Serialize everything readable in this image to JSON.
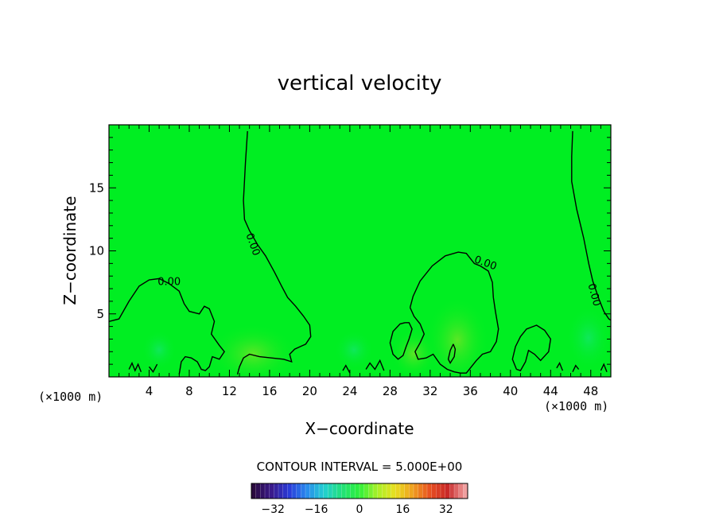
{
  "chart_data": {
    "type": "heatmap",
    "title": "vertical velocity",
    "xlabel": "X−coordinate",
    "ylabel": "Z−coordinate",
    "x_unit": "(×1000 m)",
    "y_unit": "(×1000 m)",
    "xlim": [
      0,
      50
    ],
    "ylim": [
      0,
      20
    ],
    "x_ticks": [
      4,
      8,
      12,
      16,
      20,
      24,
      28,
      32,
      36,
      40,
      44,
      48
    ],
    "y_ticks": [
      5,
      10,
      15
    ],
    "contour_label": "0.00",
    "contour_interval_text": "CONTOUR INTERVAL = 5.000E+00",
    "colorbar": {
      "range": [
        -40,
        40
      ],
      "ticks": [
        -32,
        -16,
        0,
        16,
        32
      ],
      "tick_labels": [
        "−32",
        "−16",
        "0",
        "16",
        "32"
      ],
      "colors": [
        "#2a0a3e",
        "#3a1a8a",
        "#2a3ad8",
        "#2a8aee",
        "#22d0d0",
        "#22e07a",
        "#2ef03a",
        "#a8f028",
        "#e8e020",
        "#f0a020",
        "#e85020",
        "#c82828",
        "#f0a0a0"
      ]
    },
    "field_color": "#00ee22",
    "zero_contours": [
      [
        [
          0,
          4.4
        ],
        [
          1,
          4.6
        ],
        [
          2,
          6.0
        ],
        [
          3,
          7.2
        ],
        [
          4,
          7.7
        ],
        [
          5,
          7.8
        ],
        [
          6,
          7.4
        ],
        [
          7,
          6.8
        ],
        [
          7.5,
          5.8
        ],
        [
          8,
          5.2
        ],
        [
          9,
          5.0
        ],
        [
          9.5,
          5.6
        ],
        [
          10,
          5.4
        ],
        [
          10.5,
          4.4
        ],
        [
          10.2,
          3.4
        ],
        [
          11,
          2.5
        ],
        [
          11.5,
          2.0
        ],
        [
          11,
          1.4
        ],
        [
          10.3,
          1.6
        ],
        [
          10.0,
          0.8
        ],
        [
          9.6,
          0.5
        ],
        [
          9.2,
          0.6
        ],
        [
          8.8,
          1.2
        ],
        [
          8.2,
          1.5
        ],
        [
          7.6,
          1.6
        ],
        [
          7.2,
          1.2
        ],
        [
          7.0,
          0.2
        ]
      ],
      [
        [
          13.8,
          19.5
        ],
        [
          13.6,
          17
        ],
        [
          13.4,
          14
        ],
        [
          13.5,
          12.5
        ],
        [
          14.0,
          11.6
        ],
        [
          14.8,
          10.5
        ],
        [
          15.6,
          9.6
        ],
        [
          16.5,
          8.3
        ],
        [
          17.2,
          7.2
        ],
        [
          17.8,
          6.3
        ],
        [
          18.6,
          5.6
        ],
        [
          19.4,
          4.8
        ],
        [
          20.0,
          4.1
        ],
        [
          20.1,
          3.2
        ],
        [
          19.6,
          2.6
        ],
        [
          18.5,
          2.2
        ],
        [
          18.0,
          1.8
        ],
        [
          18.2,
          1.2
        ],
        [
          17.4,
          1.4
        ],
        [
          16.2,
          1.5
        ],
        [
          15.0,
          1.6
        ],
        [
          14.0,
          1.8
        ],
        [
          13.4,
          1.5
        ],
        [
          13.0,
          0.8
        ],
        [
          12.8,
          0.2
        ]
      ],
      [
        [
          34.3,
          2.6
        ],
        [
          34.5,
          2.2
        ],
        [
          34.4,
          1.6
        ],
        [
          34.0,
          1.1
        ],
        [
          33.8,
          1.4
        ],
        [
          34.0,
          2.1
        ],
        [
          34.3,
          2.6
        ]
      ],
      [
        [
          30,
          5.5
        ],
        [
          30.3,
          6.4
        ],
        [
          31,
          7.6
        ],
        [
          32.2,
          8.8
        ],
        [
          33.5,
          9.6
        ],
        [
          34.8,
          9.9
        ],
        [
          35.6,
          9.8
        ],
        [
          36.4,
          9.0
        ],
        [
          37.0,
          8.8
        ],
        [
          37.8,
          8.4
        ],
        [
          38.2,
          7.5
        ],
        [
          38.3,
          6.3
        ],
        [
          38.5,
          5.2
        ],
        [
          38.8,
          3.8
        ],
        [
          38.6,
          2.8
        ],
        [
          38.0,
          2.0
        ],
        [
          37.2,
          1.8
        ],
        [
          36.6,
          1.3
        ],
        [
          36.0,
          0.7
        ],
        [
          35.6,
          0.3
        ],
        [
          35.0,
          0.3
        ],
        [
          34.4,
          0.4
        ],
        [
          33.7,
          0.6
        ],
        [
          33.0,
          1.0
        ],
        [
          32.3,
          1.8
        ],
        [
          31.6,
          1.5
        ],
        [
          30.8,
          1.4
        ],
        [
          30.5,
          2.0
        ],
        [
          31.0,
          2.7
        ],
        [
          31.4,
          3.4
        ],
        [
          31.0,
          4.2
        ],
        [
          30.4,
          4.8
        ],
        [
          30,
          5.5
        ]
      ],
      [
        [
          29.5,
          4.3
        ],
        [
          29.0,
          4.2
        ],
        [
          28.3,
          3.6
        ],
        [
          28.0,
          2.7
        ],
        [
          28.3,
          1.8
        ],
        [
          28.8,
          1.4
        ],
        [
          29.3,
          1.7
        ],
        [
          29.6,
          2.4
        ],
        [
          29.9,
          3.0
        ],
        [
          30.2,
          3.8
        ],
        [
          29.9,
          4.3
        ],
        [
          29.5,
          4.3
        ]
      ],
      [
        [
          46.2,
          19.5
        ],
        [
          46.1,
          17.5
        ],
        [
          46.1,
          15.5
        ],
        [
          46.6,
          13.3
        ],
        [
          47.3,
          11.0
        ],
        [
          47.8,
          9.0
        ],
        [
          48.2,
          7.6
        ],
        [
          48.8,
          6.2
        ],
        [
          49.3,
          5.2
        ],
        [
          49.8,
          4.6
        ],
        [
          50,
          4.5
        ]
      ],
      [
        [
          40.6,
          0.6
        ],
        [
          40.2,
          1.4
        ],
        [
          40.5,
          2.4
        ],
        [
          41.0,
          3.2
        ],
        [
          41.6,
          3.8
        ],
        [
          42.6,
          4.1
        ],
        [
          43.4,
          3.7
        ],
        [
          44.0,
          3.0
        ],
        [
          43.8,
          2.0
        ],
        [
          43.0,
          1.3
        ],
        [
          42.4,
          1.8
        ],
        [
          41.8,
          2.1
        ],
        [
          41.5,
          1.2
        ],
        [
          41.0,
          0.5
        ],
        [
          40.6,
          0.6
        ]
      ],
      [
        [
          23.3,
          0.5
        ],
        [
          23.6,
          0.9
        ],
        [
          24.0,
          0.3
        ]
      ],
      [
        [
          25.6,
          0.6
        ],
        [
          26.0,
          1.1
        ],
        [
          26.5,
          0.6
        ],
        [
          27.0,
          1.3
        ],
        [
          27.4,
          0.5
        ]
      ],
      [
        [
          2.0,
          0.6
        ],
        [
          2.3,
          1.1
        ],
        [
          2.6,
          0.5
        ],
        [
          2.9,
          1.0
        ],
        [
          3.2,
          0.4
        ]
      ],
      [
        [
          4.0,
          0.8
        ],
        [
          4.4,
          0.4
        ],
        [
          4.8,
          1.0
        ]
      ],
      [
        [
          44.6,
          0.7
        ],
        [
          44.9,
          1.1
        ],
        [
          45.2,
          0.5
        ]
      ],
      [
        [
          46.2,
          0.4
        ],
        [
          46.5,
          0.9
        ],
        [
          46.8,
          0.6
        ]
      ],
      [
        [
          49.0,
          0.5
        ],
        [
          49.3,
          1.0
        ],
        [
          49.6,
          0.4
        ]
      ]
    ],
    "label_positions": [
      {
        "x": 6,
        "y": 7.5,
        "angle": 0
      },
      {
        "x": 14.3,
        "y": 10.5,
        "angle": 70
      },
      {
        "x": 37.5,
        "y": 9.0,
        "angle": 20
      },
      {
        "x": 48.3,
        "y": 6.5,
        "angle": 75
      }
    ]
  }
}
